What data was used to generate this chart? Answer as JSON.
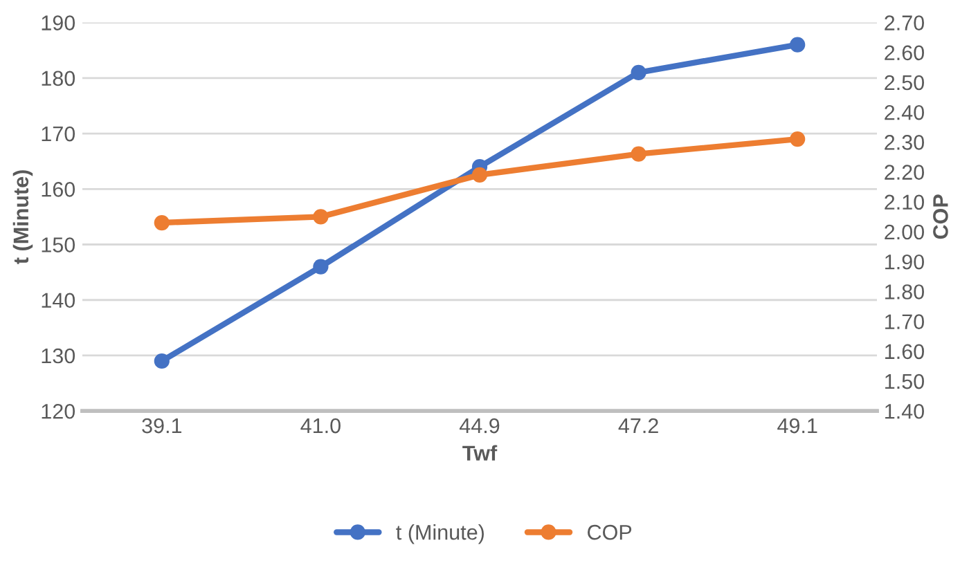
{
  "chart_data": {
    "type": "line",
    "xlabel": "Twf",
    "ylabel": "t (Minute)",
    "y2label": "COP",
    "categories": [
      "39.1",
      "41.0",
      "44.9",
      "47.2",
      "49.1"
    ],
    "series": [
      {
        "name": "t (Minute)",
        "color": "#4472c4",
        "values": [
          129,
          146,
          164,
          181,
          186
        ]
      },
      {
        "name": "COP",
        "color": "#ed7d31",
        "axis": "y2",
        "values": [
          2.03,
          2.05,
          2.19,
          2.26,
          2.31
        ]
      }
    ],
    "ylim": [
      120,
      190
    ],
    "yticks": [
      120,
      130,
      140,
      150,
      160,
      170,
      180,
      190
    ],
    "y2lim": [
      1.4,
      2.7
    ],
    "y2ticks": [
      {
        "value": 1.4,
        "label": "1.40"
      },
      {
        "value": 1.5,
        "label": "1.50"
      },
      {
        "value": 1.6,
        "label": "1.60"
      },
      {
        "value": 1.7,
        "label": "1.70"
      },
      {
        "value": 1.8,
        "label": "1.80"
      },
      {
        "value": 1.9,
        "label": "1.90"
      },
      {
        "value": 2.0,
        "label": "2.00"
      },
      {
        "value": 2.1,
        "label": "2.10"
      },
      {
        "value": 2.2,
        "label": "2.20"
      },
      {
        "value": 2.3,
        "label": "2.30"
      },
      {
        "value": 2.4,
        "label": "2.40"
      },
      {
        "value": 2.5,
        "label": "2.50"
      },
      {
        "value": 2.6,
        "label": "2.60"
      },
      {
        "value": 2.7,
        "label": "2.70"
      }
    ],
    "grid": "y",
    "legend": "bottom",
    "marker": "circle",
    "line_style": "solid"
  }
}
